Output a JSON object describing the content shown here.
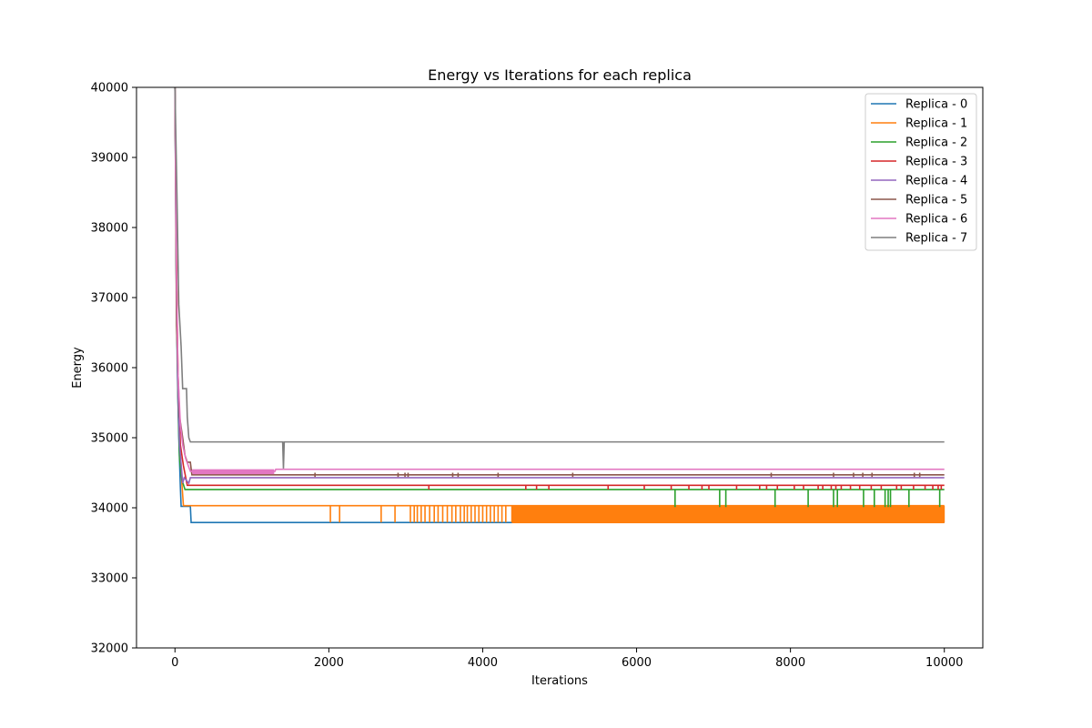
{
  "chart_data": {
    "type": "line",
    "title": "Energy vs Iterations for each replica",
    "xlabel": "Iterations",
    "ylabel": "Energy",
    "xlim": [
      -500,
      10500
    ],
    "ylim": [
      32000,
      40000
    ],
    "xticks": [
      0,
      2000,
      4000,
      6000,
      8000,
      10000
    ],
    "yticks": [
      32000,
      33000,
      34000,
      35000,
      36000,
      37000,
      38000,
      39000,
      40000
    ],
    "grid": false,
    "legend_position": "top-right",
    "series": [
      {
        "name": "Replica - 0",
        "color": "#1f77b4",
        "points": [
          [
            0,
            40000
          ],
          [
            15,
            37500
          ],
          [
            30,
            36000
          ],
          [
            50,
            35000
          ],
          [
            70,
            34300
          ],
          [
            80,
            34020
          ],
          [
            200,
            34020
          ],
          [
            210,
            33790
          ],
          [
            10000,
            33790
          ]
        ],
        "spikes": []
      },
      {
        "name": "Replica - 1",
        "color": "#ff7f0e",
        "points": [
          [
            0,
            40000
          ],
          [
            15,
            38000
          ],
          [
            30,
            36500
          ],
          [
            50,
            35200
          ],
          [
            80,
            34500
          ],
          [
            110,
            34030
          ],
          [
            10000,
            34030
          ]
        ],
        "spikes": {
          "low": 33790,
          "high": 34030,
          "x": [
            2020,
            2140,
            2680,
            2860,
            3060,
            3110,
            3150,
            3200,
            3250,
            3310,
            3370,
            3420,
            3480,
            3540,
            3600,
            3650,
            3710,
            3760,
            3800,
            3850,
            3900,
            3950,
            4000,
            4050,
            4100,
            4150,
            4200,
            4250,
            4300
          ],
          "dense_from": 4380,
          "dense_to": 10000,
          "dense_step": 18
        }
      },
      {
        "name": "Replica - 2",
        "color": "#2ca02c",
        "points": [
          [
            0,
            40000
          ],
          [
            20,
            37000
          ],
          [
            40,
            35500
          ],
          [
            60,
            34700
          ],
          [
            90,
            34400
          ],
          [
            130,
            34260
          ],
          [
            10000,
            34260
          ]
        ],
        "spikes": {
          "low": 34010,
          "high": 34260,
          "x": [
            6500,
            7080,
            7160,
            7800,
            8230,
            8560,
            8610,
            8950,
            9090,
            9230,
            9270,
            9300,
            9540,
            9940
          ]
        }
      },
      {
        "name": "Replica - 3",
        "color": "#d62728",
        "points": [
          [
            0,
            40000
          ],
          [
            20,
            37500
          ],
          [
            40,
            35800
          ],
          [
            70,
            34900
          ],
          [
            110,
            34600
          ],
          [
            160,
            34320
          ],
          [
            10000,
            34320
          ]
        ],
        "spikes": {
          "low": 34260,
          "high": 34320,
          "x": [
            3300,
            4560,
            4700,
            4860,
            5630,
            6100,
            6450,
            6680,
            6850,
            6940,
            7300,
            7600,
            7690,
            7830,
            8050,
            8170,
            8360,
            8420,
            8530,
            8590,
            8660,
            8780,
            8900,
            9050,
            9180,
            9380,
            9440,
            9600,
            9750,
            9850,
            9920,
            9960
          ]
        }
      },
      {
        "name": "Replica - 4",
        "color": "#9467bd",
        "points": [
          [
            0,
            40000
          ],
          [
            20,
            37000
          ],
          [
            40,
            35600
          ],
          [
            60,
            34900
          ],
          [
            100,
            34350
          ],
          [
            120,
            34430
          ],
          [
            180,
            34350
          ],
          [
            200,
            34430
          ],
          [
            10000,
            34430
          ]
        ],
        "spikes": []
      },
      {
        "name": "Replica - 5",
        "color": "#8c564b",
        "points": [
          [
            0,
            40000
          ],
          [
            20,
            36600
          ],
          [
            40,
            35900
          ],
          [
            60,
            35300
          ],
          [
            100,
            35000
          ],
          [
            130,
            34750
          ],
          [
            160,
            34650
          ],
          [
            200,
            34650
          ],
          [
            220,
            34470
          ],
          [
            10000,
            34470
          ]
        ],
        "spikes": {
          "low": 34440,
          "high": 34500,
          "x": [
            1820,
            2900,
            2990,
            3030,
            3610,
            3680,
            4200,
            5170,
            7750,
            8560,
            8820,
            8940,
            9060,
            9610,
            9680
          ]
        }
      },
      {
        "name": "Replica - 6",
        "color": "#e377c2",
        "points": [
          [
            0,
            40000
          ],
          [
            20,
            37300
          ],
          [
            40,
            35900
          ],
          [
            70,
            35200
          ],
          [
            100,
            34900
          ],
          [
            140,
            34700
          ],
          [
            200,
            34520
          ],
          [
            1300,
            34520
          ],
          [
            1310,
            34550
          ],
          [
            10000,
            34550
          ]
        ],
        "spikes": {
          "low": 34490,
          "high": 34550,
          "dense_from": 230,
          "dense_to": 1290,
          "dense_step": 14
        }
      },
      {
        "name": "Replica - 7",
        "color": "#7f7f7f",
        "points": [
          [
            0,
            40000
          ],
          [
            25,
            38500
          ],
          [
            50,
            36900
          ],
          [
            80,
            36300
          ],
          [
            100,
            35700
          ],
          [
            150,
            35700
          ],
          [
            160,
            35300
          ],
          [
            180,
            35000
          ],
          [
            200,
            34940
          ],
          [
            1400,
            34940
          ],
          [
            1410,
            34560
          ],
          [
            1420,
            34940
          ],
          [
            10000,
            34940
          ]
        ],
        "spikes": []
      }
    ]
  }
}
